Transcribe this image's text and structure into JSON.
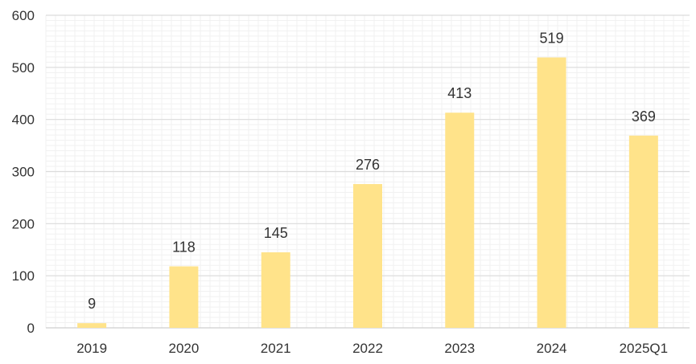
{
  "chart_data": {
    "type": "bar",
    "title": "",
    "xlabel": "",
    "ylabel": "",
    "categories": [
      "2019",
      "2020",
      "2021",
      "2022",
      "2023",
      "2024",
      "2025Q1"
    ],
    "values": [
      9,
      118,
      145,
      276,
      413,
      519,
      369
    ],
    "data_labels": [
      "9",
      "118",
      "145",
      "276",
      "413",
      "519",
      "369"
    ],
    "ylim": [
      0,
      600
    ],
    "yticks": [
      0,
      100,
      200,
      300,
      400,
      500,
      600
    ],
    "ytick_labels": [
      "0",
      "100",
      "200",
      "300",
      "400",
      "500",
      "600"
    ],
    "grid": true,
    "legend": "none",
    "colors": {
      "bar": "#FFE38A",
      "major_grid": "#DCDCDC",
      "minor_grid": "#F1F1F1",
      "axis": "#CFCFCF",
      "text": "#333333"
    }
  }
}
